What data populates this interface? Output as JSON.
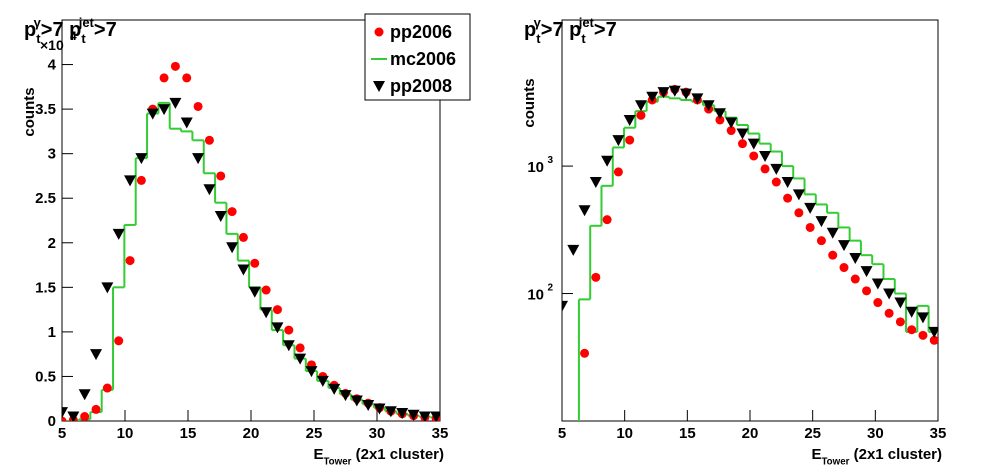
{
  "chart_data": [
    {
      "type": "scatter",
      "title": [
        {
          "text": "p"
        },
        {
          "text": "t",
          "sub": true
        },
        {
          "text": "γ",
          "sup": true
        },
        {
          "text": ">7 p"
        },
        {
          "text": "t",
          "sub": true
        },
        {
          "text": "jet",
          "sup": true
        },
        {
          "text": ">7"
        }
      ],
      "y_label": "counts",
      "y_exponent": {
        "base": "×10",
        "power": "4"
      },
      "x_label": [
        {
          "text": "E"
        },
        {
          "text": "Tower",
          "sub": true
        },
        {
          "text": "  (2x1 cluster)"
        }
      ],
      "x": [
        5.0,
        5.9,
        6.8,
        7.7,
        8.6,
        9.5,
        10.4,
        11.3,
        12.2,
        13.1,
        14.0,
        14.9,
        15.8,
        16.7,
        17.6,
        18.5,
        19.4,
        20.3,
        21.2,
        22.1,
        23.0,
        23.9,
        24.8,
        25.7,
        26.6,
        27.5,
        28.4,
        29.3,
        30.2,
        31.1,
        32.0,
        32.9,
        33.8,
        34.7
      ],
      "bins": [
        4.55,
        5.45,
        6.35,
        7.25,
        8.15,
        9.05,
        9.95,
        10.85,
        11.75,
        12.65,
        13.55,
        14.45,
        15.35,
        16.25,
        17.15,
        18.05,
        18.95,
        19.85,
        20.75,
        21.65,
        22.55,
        23.45,
        24.35,
        25.25,
        26.15,
        27.05,
        27.95,
        28.85,
        29.75,
        30.65,
        31.55,
        32.45,
        33.35,
        34.25,
        35.15
      ],
      "xlim": [
        5,
        35
      ],
      "xticks": [
        5,
        10,
        15,
        20,
        25,
        30,
        35
      ],
      "ylim": [
        0,
        4.5
      ],
      "yticks": [
        0,
        0.5,
        1,
        1.5,
        2,
        2.5,
        3,
        3.5,
        4
      ],
      "log_y": false,
      "legend": "top-right",
      "series": [
        {
          "name": "pp2006",
          "color": "#ff0000",
          "marker": "circle",
          "values": [
            0,
            0.01,
            0.05,
            0.13,
            0.37,
            0.9,
            1.8,
            2.7,
            3.5,
            3.85,
            3.98,
            3.85,
            3.53,
            3.15,
            2.75,
            2.35,
            2.06,
            1.77,
            1.47,
            1.25,
            1.02,
            0.82,
            0.63,
            0.5,
            0.4,
            0.31,
            0.25,
            0.2,
            0.15,
            0.11,
            0.08,
            0.06,
            0.04,
            0.03
          ]
        },
        {
          "name": "mc2006",
          "color": "#33cc33",
          "marker": "step",
          "values": [
            0,
            0,
            0.02,
            0.1,
            0.35,
            1.5,
            2.2,
            2.95,
            3.45,
            3.57,
            3.28,
            3.25,
            3.15,
            2.78,
            2.45,
            2.1,
            1.8,
            1.5,
            1.25,
            1.02,
            0.85,
            0.7,
            0.56,
            0.45,
            0.37,
            0.3,
            0.24,
            0.19,
            0.15,
            0.11,
            0.08,
            0.06,
            0.05,
            0.04
          ]
        },
        {
          "name": "pp2008",
          "color": "#000000",
          "marker": "triangle-down",
          "values": [
            0.1,
            0.05,
            0.3,
            0.75,
            1.5,
            2.1,
            2.7,
            2.95,
            3.45,
            3.5,
            3.57,
            3.35,
            2.95,
            2.6,
            2.3,
            1.95,
            1.7,
            1.45,
            1.22,
            1.05,
            0.85,
            0.7,
            0.56,
            0.45,
            0.36,
            0.29,
            0.23,
            0.18,
            0.14,
            0.11,
            0.09,
            0.07,
            0.05,
            0.05
          ]
        }
      ]
    },
    {
      "type": "scatter",
      "title": [
        {
          "text": "p"
        },
        {
          "text": "t",
          "sub": true
        },
        {
          "text": "γ",
          "sup": true
        },
        {
          "text": ">7 p"
        },
        {
          "text": "t",
          "sub": true
        },
        {
          "text": "jet",
          "sup": true
        },
        {
          "text": ">7"
        }
      ],
      "y_label": "counts",
      "x_label": [
        {
          "text": "E"
        },
        {
          "text": "Tower",
          "sub": true
        },
        {
          "text": "  (2x1 cluster)"
        }
      ],
      "x": [
        5.0,
        5.9,
        6.8,
        7.7,
        8.6,
        9.5,
        10.4,
        11.3,
        12.2,
        13.1,
        14.0,
        14.9,
        15.8,
        16.7,
        17.6,
        18.5,
        19.4,
        20.3,
        21.2,
        22.1,
        23.0,
        23.9,
        24.8,
        25.7,
        26.6,
        27.5,
        28.4,
        29.3,
        30.2,
        31.1,
        32.0,
        32.9,
        33.8,
        34.7
      ],
      "bins": [
        4.55,
        5.45,
        6.35,
        7.25,
        8.15,
        9.05,
        9.95,
        10.85,
        11.75,
        12.65,
        13.55,
        14.45,
        15.35,
        16.25,
        17.15,
        18.05,
        18.95,
        19.85,
        20.75,
        21.65,
        22.55,
        23.45,
        24.35,
        25.25,
        26.15,
        27.05,
        27.95,
        28.85,
        29.75,
        30.65,
        31.55,
        32.45,
        33.35,
        34.25,
        35.15
      ],
      "xlim": [
        5,
        35
      ],
      "xticks": [
        5,
        10,
        15,
        20,
        25,
        30,
        35
      ],
      "ylim": [
        10,
        14000
      ],
      "yticks": [
        {
          "value": 100,
          "label": "10",
          "power": "2"
        },
        {
          "value": 1000,
          "label": "10",
          "power": "3"
        }
      ],
      "log_y": true,
      "series": [
        {
          "color": "#ff0000",
          "marker": "circle",
          "values": [
            null,
            null,
            34,
            134,
            380,
            900,
            1600,
            2500,
            3300,
            3800,
            4000,
            3800,
            3300,
            2800,
            2300,
            1900,
            1500,
            1200,
            950,
            750,
            560,
            430,
            330,
            260,
            200,
            160,
            130,
            105,
            85,
            70,
            60,
            52,
            47,
            43
          ]
        },
        {
          "color": "#33cc33",
          "marker": "step",
          "values": [
            null,
            null,
            90,
            340,
            700,
            1400,
            2000,
            2700,
            3200,
            3500,
            3400,
            3300,
            3200,
            3000,
            2700,
            2400,
            2100,
            1800,
            1500,
            1300,
            1000,
            800,
            600,
            500,
            430,
            330,
            260,
            200,
            170,
            130,
            100,
            50,
            80,
            50
          ]
        },
        {
          "color": "#000000",
          "marker": "triangle-down",
          "values": [
            80,
            220,
            450,
            750,
            1100,
            1600,
            2300,
            3000,
            3500,
            3800,
            3900,
            3700,
            3400,
            3000,
            2600,
            2200,
            1800,
            1500,
            1200,
            950,
            750,
            600,
            470,
            370,
            300,
            240,
            190,
            150,
            120,
            100,
            85,
            72,
            65,
            50
          ]
        }
      ]
    }
  ]
}
